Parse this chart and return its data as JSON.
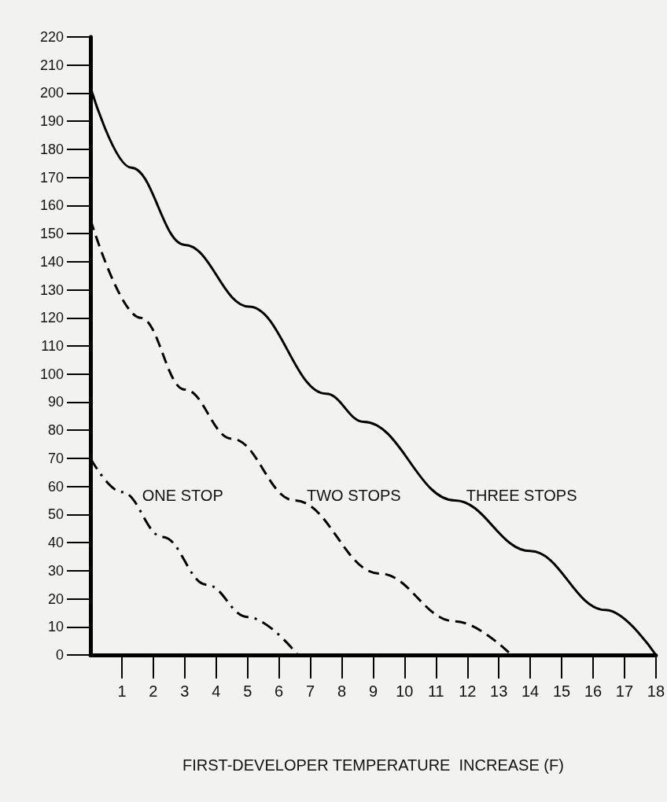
{
  "chart_data": {
    "type": "line",
    "xlabel": "FIRST-DEVELOPER TEMPERATURE  INCREASE (F)",
    "xlim": [
      0,
      18
    ],
    "xticks": [
      1,
      2,
      3,
      4,
      5,
      6,
      7,
      8,
      9,
      10,
      11,
      12,
      13,
      14,
      15,
      16,
      17,
      18
    ],
    "ylim": [
      0,
      220
    ],
    "yticks": [
      0,
      10,
      20,
      30,
      40,
      50,
      60,
      70,
      80,
      90,
      100,
      110,
      120,
      130,
      140,
      150,
      160,
      170,
      180,
      190,
      200,
      210,
      220
    ],
    "grid": false,
    "marker": "none",
    "series": [
      {
        "name": "ONE STOP",
        "color": "#000000",
        "line_style": "dashdot",
        "x": [
          0,
          1,
          2.3,
          3.7,
          5,
          6.6
        ],
        "values": [
          70,
          58,
          42,
          25,
          13.5,
          0
        ]
      },
      {
        "name": "TWO STOPS",
        "color": "#000000",
        "line_style": "dashed",
        "x": [
          0,
          1.6,
          3,
          4.5,
          6.5,
          9.2,
          11.6,
          13.4
        ],
        "values": [
          155,
          120,
          94.5,
          77,
          55,
          29,
          12,
          0
        ]
      },
      {
        "name": "THREE STOPS",
        "color": "#000000",
        "line_style": "solid",
        "x": [
          0,
          1.3,
          3,
          5.05,
          7.5,
          8.7,
          11.6,
          14,
          16.4,
          18
        ],
        "values": [
          202,
          173.5,
          146,
          124,
          93,
          83,
          55,
          37,
          16,
          0
        ]
      }
    ]
  }
}
